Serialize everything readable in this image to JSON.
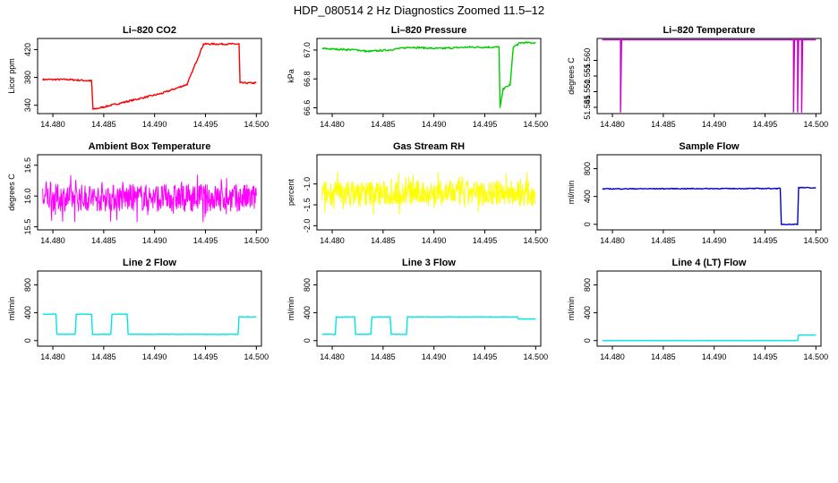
{
  "main_title": "HDP_080514  2 Hz Diagnostics Zoomed 11.5–12",
  "chart_data": [
    {
      "type": "line",
      "title": "Li–820 CO2",
      "ylabel": "Licor ppm",
      "color": "#ff0000",
      "xlim": [
        14.4785,
        14.5005
      ],
      "ylim": [
        328,
        436
      ],
      "xticks": [
        "14.480",
        "14.485",
        "14.490",
        "14.495",
        "14.500"
      ],
      "yticks": [
        "340",
        "380",
        "420"
      ],
      "noise": 1.2,
      "segments": [
        [
          14.479,
          377
        ],
        [
          14.4815,
          377
        ],
        [
          14.4838,
          375
        ],
        [
          14.48395,
          334
        ],
        [
          14.4907,
          357
        ],
        [
          14.4932,
          370
        ],
        [
          14.4948,
          428
        ],
        [
          14.4983,
          428
        ],
        [
          14.4984,
          372
        ],
        [
          14.5,
          372
        ]
      ]
    },
    {
      "type": "line",
      "title": "Li–820 Pressure",
      "ylabel": "kPa",
      "color": "#00cc00",
      "xlim": [
        14.4785,
        14.5005
      ],
      "ylim": [
        66.56,
        67.08
      ],
      "xticks": [
        "14.480",
        "14.485",
        "14.490",
        "14.495",
        "14.500"
      ],
      "yticks": [
        "66.6",
        "66.8",
        "67.0"
      ],
      "noise": 0.006,
      "segments": [
        [
          14.479,
          67.01
        ],
        [
          14.4825,
          67.0
        ],
        [
          14.4835,
          66.99
        ],
        [
          14.4855,
          67.0
        ],
        [
          14.4877,
          67.02
        ],
        [
          14.4903,
          67.01
        ],
        [
          14.4935,
          67.02
        ],
        [
          14.4964,
          67.02
        ],
        [
          14.4965,
          66.6
        ],
        [
          14.4968,
          66.73
        ],
        [
          14.4975,
          66.76
        ],
        [
          14.4978,
          67.02
        ],
        [
          14.4985,
          67.05
        ],
        [
          14.5,
          67.05
        ]
      ]
    },
    {
      "type": "line",
      "title": "Li–820 Temperature",
      "ylabel": "degrees C",
      "color": "#cc00cc",
      "xlim": [
        14.4785,
        14.5005
      ],
      "ylim": [
        51.543,
        51.567
      ],
      "xticks": [
        "14.480",
        "14.485",
        "14.490",
        "14.495",
        "14.500"
      ],
      "yticks": [
        "51.545",
        "51.550",
        "51.555",
        "51.560"
      ],
      "noise": 0,
      "segments": [
        [
          14.479,
          51.5666
        ],
        [
          14.4808,
          51.5666
        ],
        [
          14.4808,
          51.5435
        ],
        [
          14.4809,
          51.5666
        ],
        [
          14.4978,
          51.5666
        ],
        [
          14.4978,
          51.5435
        ],
        [
          14.4979,
          51.5666
        ],
        [
          14.4982,
          51.5666
        ],
        [
          14.4982,
          51.5435
        ],
        [
          14.4983,
          51.5666
        ],
        [
          14.4986,
          51.5666
        ],
        [
          14.4986,
          51.5435
        ],
        [
          14.4987,
          51.5666
        ],
        [
          14.5,
          51.5666
        ]
      ]
    },
    {
      "type": "line",
      "title": "Ambient Box Temperature",
      "ylabel": "degrees C",
      "color": "#ff00ff",
      "xlim": [
        14.4785,
        14.5005
      ],
      "ylim": [
        15.45,
        16.67
      ],
      "xticks": [
        "14.480",
        "14.485",
        "14.490",
        "14.495",
        "14.500"
      ],
      "yticks": [
        "15.5",
        "16.0",
        "16.5"
      ],
      "noise": 0.22,
      "dense": true,
      "segments": [
        [
          14.479,
          15.97
        ],
        [
          14.5,
          15.97
        ]
      ]
    },
    {
      "type": "line",
      "title": "Gas Stream RH",
      "ylabel": "percent",
      "color": "#ffff00",
      "xlim": [
        14.4785,
        14.5005
      ],
      "ylim": [
        -2.1,
        -0.3
      ],
      "xticks": [
        "14.480",
        "14.485",
        "14.490",
        "14.495",
        "14.500"
      ],
      "yticks": [
        "-2.0",
        "-1.5",
        "-1.0"
      ],
      "noise": 0.3,
      "dense": true,
      "segments": [
        [
          14.479,
          -1.22
        ],
        [
          14.5,
          -1.22
        ]
      ]
    },
    {
      "type": "line",
      "title": "Sample Flow",
      "ylabel": "ml/min",
      "color": "#0000cc",
      "xlim": [
        14.4785,
        14.5005
      ],
      "ylim": [
        -80,
        1000
      ],
      "xticks": [
        "14.480",
        "14.485",
        "14.490",
        "14.495",
        "14.500"
      ],
      "yticks": [
        "0",
        "400",
        "800"
      ],
      "noise": 6,
      "segments": [
        [
          14.479,
          510
        ],
        [
          14.4965,
          515
        ],
        [
          14.4966,
          0
        ],
        [
          14.4982,
          0
        ],
        [
          14.4983,
          530
        ],
        [
          14.5,
          520
        ]
      ]
    },
    {
      "type": "line",
      "title": "Line 2 Flow",
      "ylabel": "ml/min",
      "color": "#00e5e5",
      "xlim": [
        14.4785,
        14.5005
      ],
      "ylim": [
        -80,
        1000
      ],
      "xticks": [
        "14.480",
        "14.485",
        "14.490",
        "14.495",
        "14.500"
      ],
      "yticks": [
        "0",
        "400",
        "800"
      ],
      "noise": 3,
      "segments": [
        [
          14.479,
          380
        ],
        [
          14.4803,
          380
        ],
        [
          14.4804,
          90
        ],
        [
          14.4822,
          90
        ],
        [
          14.4823,
          380
        ],
        [
          14.4838,
          380
        ],
        [
          14.4839,
          90
        ],
        [
          14.4857,
          90
        ],
        [
          14.4858,
          380
        ],
        [
          14.4873,
          380
        ],
        [
          14.4874,
          90
        ],
        [
          14.4982,
          90
        ],
        [
          14.4983,
          340
        ],
        [
          14.5,
          340
        ]
      ]
    },
    {
      "type": "line",
      "title": "Line 3 Flow",
      "ylabel": "ml/min",
      "color": "#00e5e5",
      "xlim": [
        14.4785,
        14.5005
      ],
      "ylim": [
        -80,
        1000
      ],
      "xticks": [
        "14.480",
        "14.485",
        "14.490",
        "14.495",
        "14.500"
      ],
      "yticks": [
        "0",
        "400",
        "800"
      ],
      "noise": 3,
      "segments": [
        [
          14.479,
          90
        ],
        [
          14.4803,
          90
        ],
        [
          14.4804,
          340
        ],
        [
          14.4822,
          340
        ],
        [
          14.4823,
          90
        ],
        [
          14.4838,
          90
        ],
        [
          14.4839,
          340
        ],
        [
          14.4857,
          340
        ],
        [
          14.4858,
          90
        ],
        [
          14.4873,
          90
        ],
        [
          14.4874,
          340
        ],
        [
          14.4982,
          340
        ],
        [
          14.4983,
          310
        ],
        [
          14.5,
          310
        ]
      ]
    },
    {
      "type": "line",
      "title": "Line 4 (LT) Flow",
      "ylabel": "ml/min",
      "color": "#00e5e5",
      "xlim": [
        14.4785,
        14.5005
      ],
      "ylim": [
        -80,
        1000
      ],
      "xticks": [
        "14.480",
        "14.485",
        "14.490",
        "14.495",
        "14.500"
      ],
      "yticks": [
        "0",
        "400",
        "800"
      ],
      "noise": 1,
      "segments": [
        [
          14.479,
          0
        ],
        [
          14.4982,
          0
        ],
        [
          14.4983,
          80
        ],
        [
          14.5,
          80
        ]
      ]
    }
  ]
}
